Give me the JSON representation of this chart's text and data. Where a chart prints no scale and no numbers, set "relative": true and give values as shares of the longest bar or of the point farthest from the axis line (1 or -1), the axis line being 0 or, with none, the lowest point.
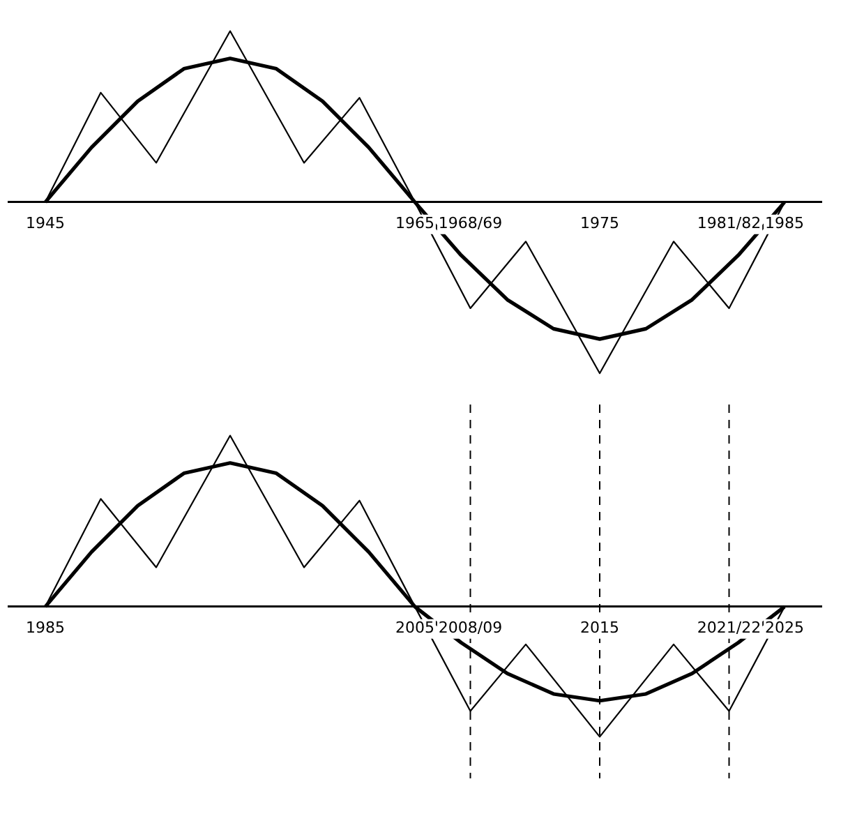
{
  "chart_data": [
    {
      "type": "line",
      "relative": true,
      "xlim": [
        1943,
        1987
      ],
      "xticks": [
        1945,
        1965,
        {
          "value": 1968,
          "label": "1968/69"
        },
        1975,
        {
          "value": 1982,
          "label": "1981/82"
        },
        1985
      ],
      "grid": false,
      "legend": false,
      "marker": "none",
      "line_style": "solid",
      "series": [
        {
          "color": "#000000",
          "x": [
            1945,
            1947.5,
            1950,
            1952.5,
            1955,
            1957.5,
            1960,
            1962.5,
            1965,
            1967.5,
            1970,
            1972.5,
            1975,
            1977.5,
            1980,
            1982.5,
            1985
          ],
          "values": [
            0,
            0.32,
            0.59,
            0.78,
            0.84,
            0.78,
            0.59,
            0.32,
            0,
            -0.31,
            -0.57,
            -0.74,
            -0.8,
            -0.74,
            -0.57,
            -0.31,
            0
          ]
        },
        {
          "color": "#000000",
          "x": [
            1945,
            1948,
            1951,
            1955,
            1959,
            1962,
            1965,
            1968,
            1971,
            1975,
            1979,
            1982,
            1985
          ],
          "values": [
            0,
            0.64,
            0.23,
            1,
            0.23,
            0.61,
            0,
            -0.62,
            -0.23,
            -1,
            -0.23,
            -0.62,
            0
          ]
        }
      ]
    },
    {
      "type": "line",
      "relative": true,
      "xlim": [
        1983,
        2027
      ],
      "xticks": [
        1985,
        2005,
        {
          "value": 2008,
          "label": "2008/09"
        },
        2015,
        {
          "value": 2022,
          "label": "2021/22"
        },
        2025
      ],
      "grid": false,
      "legend": false,
      "marker": "none",
      "line_style": "solid",
      "ref_lines": [
        {
          "axis": "x",
          "value": 2008,
          "label": null,
          "line_style": "dashed",
          "color": "#000000"
        },
        {
          "axis": "x",
          "value": 2015,
          "label": null,
          "line_style": "dashed",
          "color": "#000000"
        },
        {
          "axis": "x",
          "value": 2022,
          "label": null,
          "line_style": "dashed",
          "color": "#000000"
        }
      ],
      "series": [
        {
          "color": "#000000",
          "x": [
            1985,
            1987.5,
            1990,
            1992.5,
            1995,
            1997.5,
            2000,
            2002.5,
            2005,
            2007.5,
            2010,
            2012.5,
            2015,
            2017.5,
            2020,
            2022.5,
            2025
          ],
          "values": [
            0,
            0.32,
            0.59,
            0.78,
            0.84,
            0.78,
            0.59,
            0.32,
            0,
            -0.21,
            -0.39,
            -0.51,
            -0.55,
            -0.51,
            -0.39,
            -0.21,
            0
          ]
        },
        {
          "color": "#000000",
          "x": [
            1985,
            1988,
            1991,
            1995,
            1999,
            2002,
            2005,
            2008,
            2011,
            2015,
            2019,
            2022,
            2025
          ],
          "values": [
            0,
            0.63,
            0.23,
            1,
            0.23,
            0.62,
            0,
            -0.61,
            -0.22,
            -0.76,
            -0.22,
            -0.61,
            0
          ]
        }
      ]
    }
  ]
}
